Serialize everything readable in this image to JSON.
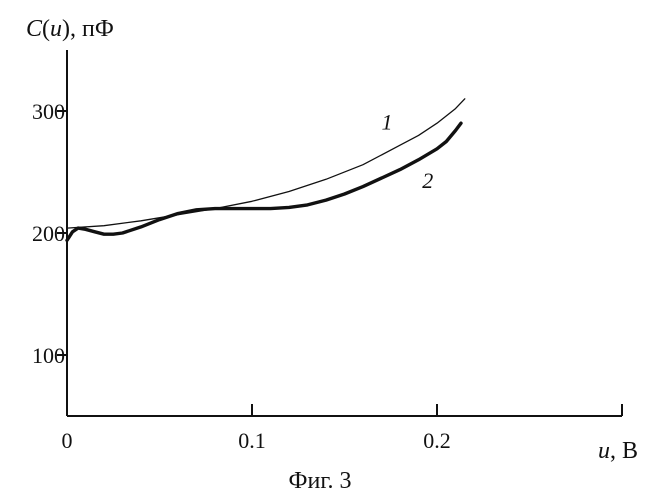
{
  "chart_data": {
    "type": "line",
    "title": "",
    "caption": "Фиг. 3",
    "ylabel": {
      "symbol": "C",
      "open_paren": "(",
      "variable": "u",
      "close_paren": "), пФ"
    },
    "xlabel": {
      "variable": "u",
      "unit": ", В"
    },
    "xlim": [
      0,
      0.3
    ],
    "ylim": [
      50,
      350
    ],
    "x_ticks": [
      {
        "value": 0,
        "label": "0"
      },
      {
        "value": 0.1,
        "label": "0.1"
      },
      {
        "value": 0.2,
        "label": "0.2"
      }
    ],
    "y_ticks": [
      {
        "value": 100,
        "label": "100"
      },
      {
        "value": 200,
        "label": "200"
      },
      {
        "value": 300,
        "label": "300"
      }
    ],
    "grid": false,
    "series": [
      {
        "name": "1",
        "label_at": [
          0.17,
          285
        ],
        "x": [
          0.0,
          0.02,
          0.04,
          0.06,
          0.08,
          0.1,
          0.12,
          0.14,
          0.16,
          0.18,
          0.19,
          0.2,
          0.21,
          0.215
        ],
        "y": [
          204,
          206,
          210,
          215,
          220,
          226,
          234,
          244,
          256,
          272,
          280,
          290,
          302,
          310
        ]
      },
      {
        "name": "2",
        "label_at": [
          0.192,
          237
        ],
        "x": [
          0.0,
          0.003,
          0.006,
          0.01,
          0.015,
          0.02,
          0.025,
          0.03,
          0.04,
          0.05,
          0.06,
          0.07,
          0.08,
          0.09,
          0.1,
          0.11,
          0.12,
          0.13,
          0.14,
          0.15,
          0.16,
          0.17,
          0.18,
          0.19,
          0.2,
          0.205,
          0.21,
          0.213
        ],
        "y": [
          194,
          201,
          204,
          203,
          201,
          199,
          199,
          200,
          205,
          211,
          216,
          219,
          220,
          220,
          220,
          220,
          221,
          223,
          227,
          232,
          238,
          245,
          252,
          260,
          269,
          275,
          284,
          290
        ]
      }
    ]
  }
}
